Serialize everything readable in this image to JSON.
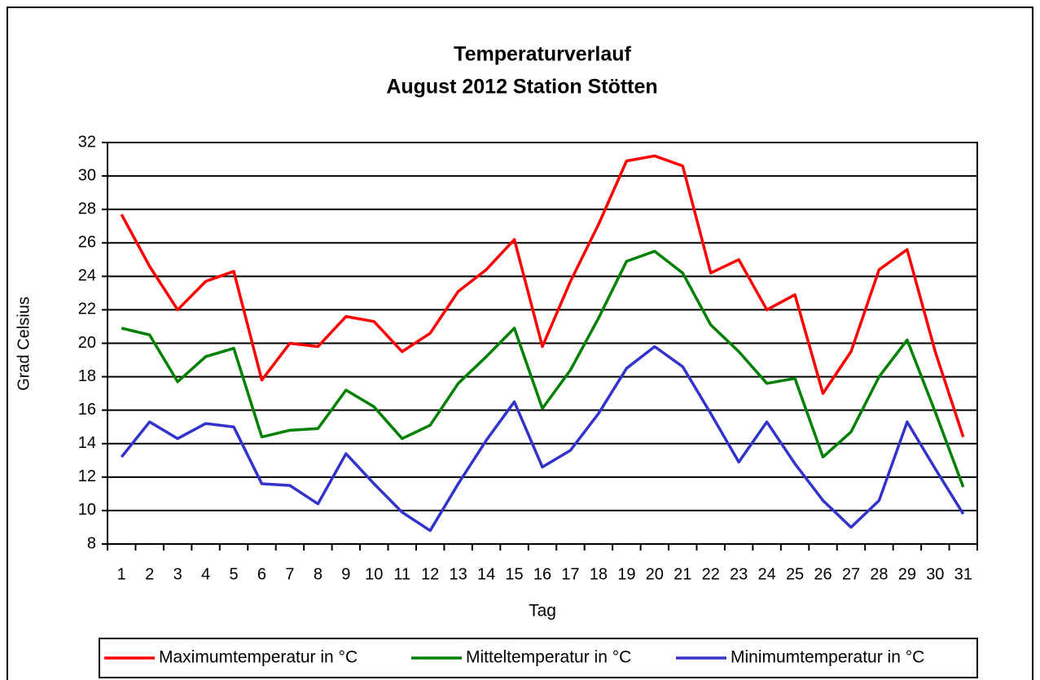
{
  "chart_data": {
    "type": "line",
    "title": "Temperaturverlauf",
    "subtitle": "August 2012 Station Stötten",
    "y_label": "Grad Celsius",
    "x_label": "Tag",
    "categories": [
      "1",
      "2",
      "3",
      "4",
      "5",
      "6",
      "7",
      "8",
      "9",
      "10",
      "11",
      "12",
      "13",
      "14",
      "15",
      "16",
      "17",
      "18",
      "19",
      "20",
      "21",
      "22",
      "23",
      "24",
      "25",
      "26",
      "27",
      "28",
      "29",
      "30",
      "31"
    ],
    "series": [
      {
        "name": "Maximumtemperatur in °C",
        "color": "#ff0000",
        "values": [
          27.7,
          24.6,
          22.0,
          23.7,
          24.3,
          17.8,
          20.0,
          19.8,
          21.6,
          21.3,
          19.5,
          20.6,
          23.1,
          24.4,
          26.2,
          19.8,
          23.7,
          27.1,
          30.9,
          31.2,
          30.6,
          24.2,
          25.0,
          22.0,
          22.9,
          17.0,
          19.5,
          24.4,
          25.6,
          19.5,
          14.4
        ]
      },
      {
        "name": "Mitteltemperatur in °C",
        "color": "#008000",
        "values": [
          20.9,
          20.5,
          17.7,
          19.2,
          19.7,
          14.4,
          14.8,
          14.9,
          17.2,
          16.2,
          14.3,
          15.1,
          17.6,
          19.2,
          20.9,
          16.1,
          18.4,
          21.5,
          24.9,
          25.5,
          24.2,
          21.1,
          19.5,
          17.6,
          17.9,
          13.2,
          14.7,
          18.0,
          20.2,
          15.9,
          11.4
        ]
      },
      {
        "name": "Minimumtemperatur in °C",
        "color": "#3333cc",
        "values": [
          13.2,
          15.3,
          14.3,
          15.2,
          15.0,
          11.6,
          11.5,
          10.4,
          13.4,
          11.6,
          9.9,
          8.8,
          11.6,
          14.2,
          16.5,
          12.6,
          13.6,
          15.8,
          18.5,
          19.8,
          18.6,
          15.8,
          12.9,
          15.3,
          12.8,
          10.6,
          9.0,
          10.6,
          15.3,
          12.5,
          9.8
        ]
      }
    ],
    "ylim": [
      8,
      32
    ],
    "yticks": [
      8,
      10,
      12,
      14,
      16,
      18,
      20,
      22,
      24,
      26,
      28,
      30,
      32
    ],
    "grid": true,
    "legend": "bottom"
  }
}
